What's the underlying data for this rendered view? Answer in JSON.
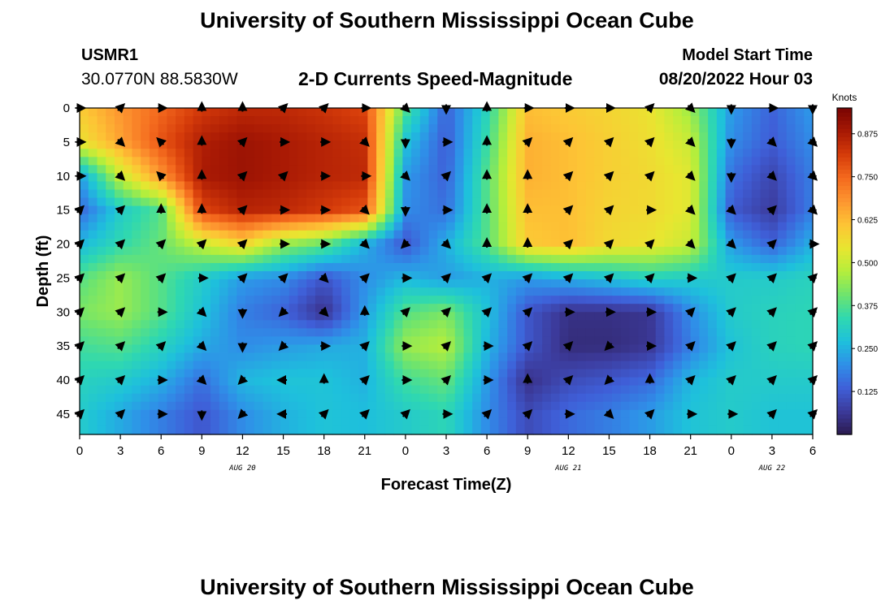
{
  "header": {
    "title": "University of Southern Mississippi Ocean Cube",
    "station": "USMR1",
    "coordinates": "30.0770N  88.5830W",
    "subtitle": "2-D Currents Speed-Magnitude",
    "model_start_label": "Model Start Time",
    "model_start_value": "08/20/2022 Hour 03"
  },
  "footer": {
    "title": "University of Southern Mississippi Ocean Cube"
  },
  "chart_data": {
    "type": "heatmap",
    "title": "2-D Currents Speed-Magnitude",
    "xlabel": "Forecast Time(Z)",
    "ylabel": "Depth (ft)",
    "x_tick_labels": [
      "0",
      "3",
      "6",
      "9",
      "12",
      "15",
      "18",
      "21",
      "0",
      "3",
      "6",
      "9",
      "12",
      "15",
      "18",
      "21",
      "0",
      "3",
      "6"
    ],
    "x_date_labels": [
      {
        "at_tick": 4,
        "text": "AUG 20"
      },
      {
        "at_tick": 12,
        "text": "AUG 21"
      },
      {
        "at_tick": 17,
        "text": "AUG 22"
      }
    ],
    "y_ticks": [
      0,
      5,
      10,
      15,
      20,
      25,
      30,
      35,
      40,
      45
    ],
    "ylim": [
      0,
      48
    ],
    "colorbar": {
      "unit": "Knots",
      "range": [
        0.0,
        0.95
      ],
      "ticks": [
        0.125,
        0.25,
        0.375,
        0.5,
        0.625,
        0.75,
        0.875
      ],
      "tick_labels": [
        "0.125",
        "0.250",
        "0.375",
        "0.500",
        "0.625",
        "0.750",
        "0.875"
      ]
    },
    "x_hours": [
      0,
      3,
      6,
      9,
      12,
      15,
      18,
      21,
      24,
      27,
      30,
      33,
      36,
      39,
      42,
      45,
      48,
      51,
      54
    ],
    "y_depths": [
      0,
      5,
      10,
      15,
      20,
      25,
      30,
      35,
      40,
      45
    ],
    "speed_knots": [
      [
        0.6,
        0.68,
        0.75,
        0.82,
        0.85,
        0.85,
        0.83,
        0.8,
        0.38,
        0.14,
        0.32,
        0.62,
        0.6,
        0.58,
        0.55,
        0.45,
        0.22,
        0.14,
        0.22
      ],
      [
        0.55,
        0.66,
        0.78,
        0.87,
        0.9,
        0.88,
        0.86,
        0.84,
        0.28,
        0.13,
        0.35,
        0.64,
        0.62,
        0.59,
        0.56,
        0.5,
        0.2,
        0.13,
        0.2
      ],
      [
        0.22,
        0.5,
        0.68,
        0.88,
        0.9,
        0.88,
        0.86,
        0.85,
        0.22,
        0.14,
        0.38,
        0.64,
        0.62,
        0.59,
        0.57,
        0.53,
        0.16,
        0.09,
        0.18
      ],
      [
        0.15,
        0.3,
        0.38,
        0.8,
        0.86,
        0.85,
        0.82,
        0.78,
        0.2,
        0.16,
        0.38,
        0.62,
        0.62,
        0.58,
        0.57,
        0.53,
        0.13,
        0.07,
        0.18
      ],
      [
        0.26,
        0.34,
        0.4,
        0.5,
        0.58,
        0.45,
        0.4,
        0.25,
        0.12,
        0.25,
        0.38,
        0.6,
        0.62,
        0.57,
        0.55,
        0.5,
        0.22,
        0.14,
        0.25
      ],
      [
        0.38,
        0.45,
        0.38,
        0.3,
        0.22,
        0.2,
        0.12,
        0.2,
        0.26,
        0.22,
        0.25,
        0.22,
        0.25,
        0.28,
        0.32,
        0.3,
        0.3,
        0.3,
        0.32
      ],
      [
        0.42,
        0.45,
        0.38,
        0.28,
        0.18,
        0.14,
        0.05,
        0.22,
        0.38,
        0.42,
        0.28,
        0.12,
        0.05,
        0.05,
        0.06,
        0.2,
        0.3,
        0.32,
        0.33
      ],
      [
        0.36,
        0.38,
        0.32,
        0.24,
        0.2,
        0.22,
        0.24,
        0.25,
        0.45,
        0.48,
        0.26,
        0.12,
        0.04,
        0.04,
        0.06,
        0.18,
        0.28,
        0.32,
        0.33
      ],
      [
        0.32,
        0.3,
        0.25,
        0.16,
        0.26,
        0.28,
        0.28,
        0.25,
        0.36,
        0.4,
        0.22,
        0.05,
        0.1,
        0.12,
        0.15,
        0.26,
        0.3,
        0.3,
        0.3
      ],
      [
        0.3,
        0.24,
        0.18,
        0.12,
        0.2,
        0.25,
        0.28,
        0.27,
        0.3,
        0.33,
        0.2,
        0.1,
        0.15,
        0.18,
        0.22,
        0.28,
        0.3,
        0.28,
        0.28
      ]
    ],
    "vector_directions_deg": [
      [
        90,
        45,
        90,
        0,
        0,
        45,
        45,
        90,
        135,
        180,
        0,
        90,
        90,
        90,
        45,
        135,
        180,
        90,
        180
      ],
      [
        90,
        135,
        315,
        0,
        45,
        90,
        90,
        135,
        180,
        90,
        0,
        45,
        45,
        45,
        45,
        135,
        180,
        135,
        135
      ],
      [
        90,
        135,
        315,
        0,
        45,
        45,
        90,
        90,
        135,
        45,
        0,
        0,
        45,
        45,
        45,
        135,
        180,
        135,
        135
      ],
      [
        45,
        45,
        0,
        0,
        45,
        90,
        90,
        135,
        180,
        90,
        0,
        0,
        45,
        45,
        90,
        135,
        135,
        45,
        135
      ],
      [
        45,
        45,
        45,
        45,
        45,
        90,
        90,
        135,
        225,
        135,
        0,
        0,
        45,
        45,
        45,
        135,
        135,
        45,
        90
      ],
      [
        45,
        45,
        45,
        90,
        45,
        45,
        135,
        45,
        90,
        45,
        45,
        45,
        45,
        45,
        45,
        90,
        45,
        45,
        45
      ],
      [
        45,
        45,
        90,
        135,
        180,
        225,
        135,
        0,
        45,
        45,
        45,
        45,
        90,
        90,
        90,
        45,
        45,
        45,
        45
      ],
      [
        45,
        45,
        45,
        135,
        180,
        225,
        90,
        45,
        90,
        45,
        90,
        45,
        45,
        225,
        90,
        45,
        45,
        45,
        45
      ],
      [
        45,
        45,
        90,
        135,
        225,
        270,
        0,
        45,
        90,
        45,
        90,
        0,
        45,
        225,
        0,
        45,
        45,
        45,
        45
      ],
      [
        45,
        45,
        90,
        180,
        225,
        270,
        45,
        45,
        45,
        90,
        45,
        45,
        90,
        135,
        45,
        90,
        90,
        45,
        45
      ]
    ],
    "colormap": [
      "#2a1a4e",
      "#3c3a9a",
      "#3f5fd8",
      "#2f8fe8",
      "#1ec0dc",
      "#2fd8b0",
      "#6ee46e",
      "#b4ee3c",
      "#e8e630",
      "#fdc535",
      "#fd9630",
      "#f46a1e",
      "#d63c0a",
      "#a81904",
      "#7a0403"
    ]
  }
}
